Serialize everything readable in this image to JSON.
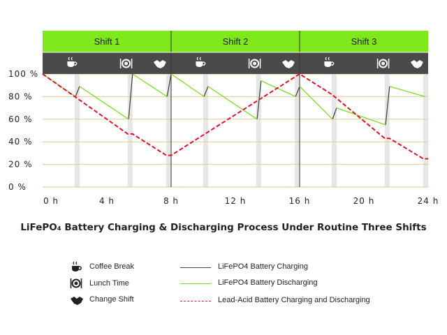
{
  "chart_data": {
    "type": "line",
    "title": "LiFePO₄ Battery Charging & Discharging Process Under Routine Three Shifts",
    "shifts": [
      {
        "label": "Shift 1",
        "start": 0,
        "end": 8
      },
      {
        "label": "Shift 2",
        "start": 8,
        "end": 16
      },
      {
        "label": "Shift 3",
        "start": 16,
        "end": 24
      }
    ],
    "event_icons": [
      {
        "shift": 0,
        "icons": [
          "coffee-cup-icon",
          "plate-cutlery-icon",
          "handshake-icon"
        ]
      },
      {
        "shift": 1,
        "icons": [
          "coffee-cup-icon",
          "plate-cutlery-icon",
          "handshake-icon"
        ]
      },
      {
        "shift": 2,
        "icons": [
          "coffee-cup-icon",
          "plate-cutlery-icon",
          "handshake-icon"
        ]
      }
    ],
    "x_ticks": [
      {
        "value": 0,
        "label": "0 h"
      },
      {
        "value": 4,
        "label": "4 h"
      },
      {
        "value": 8,
        "label": "8 h"
      },
      {
        "value": 12,
        "label": "12 h"
      },
      {
        "value": 16,
        "label": "16 h"
      },
      {
        "value": 20,
        "label": "20 h"
      },
      {
        "value": 24,
        "label": "24 h"
      }
    ],
    "y_ticks": [
      {
        "value": 0,
        "label": "0 %"
      },
      {
        "value": 20,
        "label": "20 %"
      },
      {
        "value": 40,
        "label": "40 %"
      },
      {
        "value": 60,
        "label": "60 %"
      },
      {
        "value": 80,
        "label": "80 %"
      },
      {
        "value": 100,
        "label": "100 %"
      }
    ],
    "xlim": [
      0,
      24
    ],
    "ylim": [
      0,
      100
    ],
    "break_bands": [
      [
        2.0,
        2.3
      ],
      [
        5.3,
        5.6
      ],
      [
        7.7,
        8.0
      ],
      [
        10.0,
        10.3
      ],
      [
        13.3,
        13.6
      ],
      [
        15.7,
        16.0
      ],
      [
        18.0,
        18.3
      ],
      [
        21.3,
        21.6
      ],
      [
        23.7,
        24.0
      ]
    ],
    "series": [
      {
        "name": "LiFePO4 Battery Charging",
        "color": "#444444",
        "dash": "none",
        "segments": [
          [
            [
              2.05,
              80
            ],
            [
              2.3,
              89
            ]
          ],
          [
            [
              5.35,
              60
            ],
            [
              5.6,
              100
            ]
          ],
          [
            [
              7.75,
              80
            ],
            [
              8.0,
              100
            ]
          ],
          [
            [
              10.05,
              80
            ],
            [
              10.3,
              89
            ]
          ],
          [
            [
              13.35,
              60
            ],
            [
              13.6,
              94
            ]
          ],
          [
            [
              15.75,
              80
            ],
            [
              16.0,
              89
            ]
          ],
          [
            [
              18.05,
              60
            ],
            [
              18.3,
              70
            ]
          ],
          [
            [
              21.35,
              55
            ],
            [
              21.6,
              89
            ]
          ]
        ]
      },
      {
        "name": "LiFePO4 Battery Discharging",
        "color": "#7ddc1f",
        "dash": "none",
        "segments": [
          [
            [
              0,
              100
            ],
            [
              2.05,
              80
            ]
          ],
          [
            [
              2.3,
              89
            ],
            [
              5.35,
              60
            ]
          ],
          [
            [
              5.6,
              100
            ],
            [
              7.75,
              80
            ]
          ],
          [
            [
              8.0,
              100
            ],
            [
              10.05,
              80
            ]
          ],
          [
            [
              10.3,
              89
            ],
            [
              13.35,
              60
            ]
          ],
          [
            [
              13.6,
              94
            ],
            [
              15.75,
              80
            ]
          ],
          [
            [
              16.0,
              89
            ],
            [
              18.05,
              60
            ]
          ],
          [
            [
              18.3,
              70
            ],
            [
              21.35,
              55
            ]
          ],
          [
            [
              21.6,
              89
            ],
            [
              23.8,
              80
            ]
          ]
        ]
      },
      {
        "name": "Lead-Acid Battery Charging and Discharging",
        "color": "#e0102a",
        "dash": "6,3",
        "segments": [
          [
            [
              0,
              100
            ],
            [
              2,
              80
            ],
            [
              5.3,
              47
            ],
            [
              5.6,
              47
            ],
            [
              7.7,
              28
            ],
            [
              8.0,
              28
            ],
            [
              16.0,
              100
            ],
            [
              18.0,
              82
            ],
            [
              21.3,
              43
            ],
            [
              21.6,
              43
            ],
            [
              23.7,
              25
            ],
            [
              24.0,
              25
            ]
          ]
        ]
      }
    ],
    "legend": {
      "icons": [
        {
          "icon": "coffee-cup-icon",
          "label": "Coffee Break"
        },
        {
          "icon": "plate-cutlery-icon",
          "label": "Lunch Time"
        },
        {
          "icon": "handshake-icon",
          "label": "Change Shift"
        }
      ],
      "lines": [
        {
          "label": "LiFePO4 Battery Charging",
          "color": "#444444",
          "dash": "none"
        },
        {
          "label": "LiFePO4 Battery Discharging",
          "color": "#7ddc1f",
          "dash": "none"
        },
        {
          "label": "Lead-Acid Battery Charging and Discharging",
          "color": "#e0102a",
          "dash": "dashed"
        }
      ]
    },
    "colors": {
      "shift_bar": "#7ee81a",
      "icon_bar": "#4a4a4a",
      "break_band": "#e6e6e6",
      "grid": "#e2c98f"
    }
  }
}
